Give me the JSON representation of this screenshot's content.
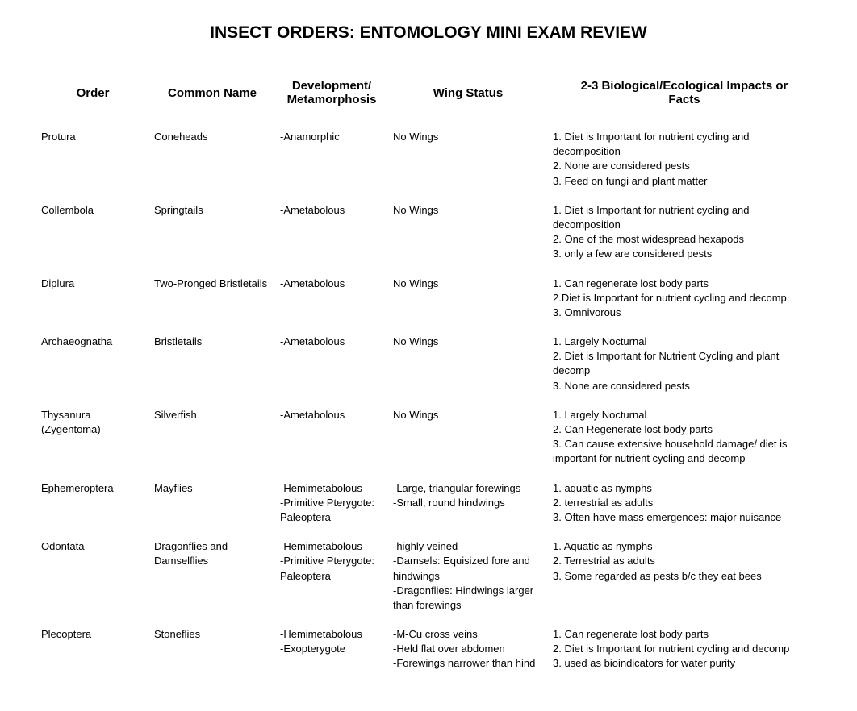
{
  "title": "INSECT ORDERS: ENTOMOLOGY MINI EXAM REVIEW",
  "columns": {
    "order": "Order",
    "common": "Common Name",
    "dev_line1": "Development/",
    "dev_line2": "Metamorphosis",
    "wing": "Wing Status",
    "facts_line1": "2-3 Biological/Ecological Impacts or",
    "facts_line2": "Facts"
  },
  "rows": [
    {
      "order": [
        "Protura"
      ],
      "common": [
        "Coneheads"
      ],
      "dev": [
        "-Anamorphic"
      ],
      "wing": [
        "No Wings"
      ],
      "facts": [
        "1. Diet is Important for nutrient cycling and decomposition",
        "2. None are considered pests",
        "3. Feed on fungi and plant matter"
      ]
    },
    {
      "order": [
        "Collembola"
      ],
      "common": [
        "Springtails"
      ],
      "dev": [
        "-Ametabolous"
      ],
      "wing": [
        "No Wings"
      ],
      "facts": [
        "1. Diet is Important for nutrient cycling and decomposition",
        "2. One of the most widespread hexapods",
        "3. only a few are considered pests"
      ]
    },
    {
      "order": [
        "Diplura"
      ],
      "common": [
        "Two-Pronged Bristletails"
      ],
      "dev": [
        "-Ametabolous"
      ],
      "wing": [
        "No Wings"
      ],
      "facts": [
        "1. Can regenerate lost body parts",
        "2.Diet is Important for nutrient cycling and decomp.",
        "3. Omnivorous"
      ]
    },
    {
      "order": [
        "Archaeognatha"
      ],
      "common": [
        "Bristletails"
      ],
      "dev": [
        "-Ametabolous"
      ],
      "wing": [
        "No Wings"
      ],
      "facts": [
        "1. Largely Nocturnal",
        "2. Diet is Important for Nutrient Cycling and plant decomp",
        "3. None are considered pests"
      ]
    },
    {
      "order": [
        "Thysanura (Zygentoma)"
      ],
      "common": [
        "Silverfish"
      ],
      "dev": [
        "-Ametabolous"
      ],
      "wing": [
        "No Wings"
      ],
      "facts": [
        "1. Largely Nocturnal",
        "2. Can Regenerate lost body parts",
        "3. Can cause extensive household damage/ diet is important for nutrient cycling and decomp"
      ]
    },
    {
      "order": [
        "Ephemeroptera"
      ],
      "common": [
        "Mayflies"
      ],
      "dev": [
        "-Hemimetabolous",
        "-Primitive Pterygote: Paleoptera"
      ],
      "wing": [
        "-Large, triangular forewings",
        "-Small, round hindwings"
      ],
      "facts": [
        "1. aquatic as nymphs",
        "2. terrestrial as adults",
        "3. Often have mass emergences: major nuisance"
      ]
    },
    {
      "order": [
        "Odontata"
      ],
      "common": [
        "Dragonflies and Damselflies"
      ],
      "dev": [
        "-Hemimetabolous",
        "-Primitive Pterygote: Paleoptera"
      ],
      "wing": [
        "-highly veined",
        "-Damsels: Equisized fore and hindwings",
        "-Dragonflies: Hindwings larger than forewings"
      ],
      "facts": [
        "1. Aquatic as nymphs",
        "2. Terrestrial as adults",
        "3. Some regarded as pests b/c they eat bees"
      ]
    },
    {
      "order": [
        "Plecoptera"
      ],
      "common": [
        "Stoneflies"
      ],
      "dev": [
        "-Hemimetabolous",
        "-Exopterygote"
      ],
      "wing": [
        "-M-Cu cross veins",
        "-Held flat over abdomen",
        "-Forewings narrower than hind"
      ],
      "facts": [
        "1. Can regenerate lost body parts",
        "2. Diet is Important for nutrient cycling and decomp",
        "3. used as bioindicators for water purity"
      ]
    }
  ],
  "style": {
    "background_color": "#ffffff",
    "title_fontsize": 21,
    "title_fontweight": "bold",
    "header_fontsize": 15,
    "header_fontweight": "bold",
    "body_fontsize": 13,
    "text_color": "#000000",
    "col_widths": {
      "order": 140,
      "common": 156,
      "dev": 140,
      "wing": 198
    }
  }
}
